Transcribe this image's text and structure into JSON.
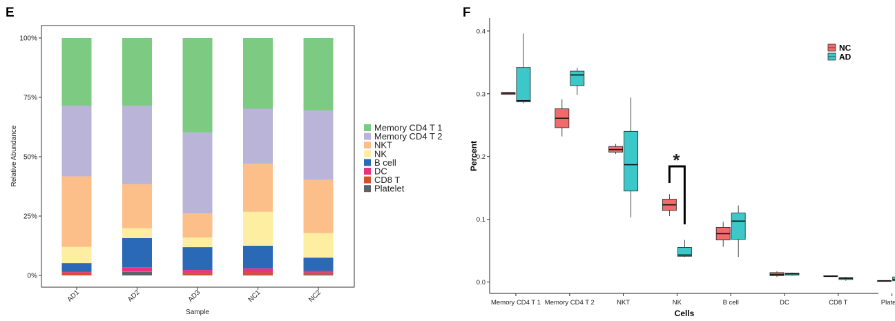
{
  "panel_e_label": "E",
  "panel_f_label": "F",
  "chart_data": [
    {
      "type": "bar",
      "stacked": true,
      "title": "",
      "xlabel": "Sample",
      "ylabel": "Relative Abundance",
      "categories": [
        "AD1",
        "AD2",
        "AD3",
        "NC1",
        "NC2"
      ],
      "ylim": [
        0,
        1
      ],
      "yticks": [
        "0%",
        "25%",
        "50%",
        "75%",
        "100%"
      ],
      "series": [
        {
          "name": "Platelet",
          "color": "#5a6468",
          "values": [
            0.002,
            0.015,
            0.002,
            0.003,
            0.004
          ]
        },
        {
          "name": "CD8 T",
          "color": "#d2522b",
          "values": [
            0.01,
            0.002,
            0.009,
            0.01,
            0.008
          ]
        },
        {
          "name": "DC",
          "color": "#e8347e",
          "values": [
            0.004,
            0.017,
            0.012,
            0.017,
            0.007
          ]
        },
        {
          "name": "B cell",
          "color": "#2a69b6",
          "values": [
            0.036,
            0.123,
            0.096,
            0.095,
            0.056
          ]
        },
        {
          "name": "NK",
          "color": "#fdeea1",
          "values": [
            0.068,
            0.042,
            0.041,
            0.143,
            0.103
          ]
        },
        {
          "name": "NKT",
          "color": "#fdbf89",
          "values": [
            0.297,
            0.185,
            0.101,
            0.202,
            0.225
          ]
        },
        {
          "name": "Memory CD4 T 2",
          "color": "#bab4d9",
          "values": [
            0.298,
            0.331,
            0.341,
            0.232,
            0.292
          ]
        },
        {
          "name": "Memory CD4 T 1",
          "color": "#7dcb82",
          "values": [
            0.285,
            0.285,
            0.398,
            0.298,
            0.305
          ]
        }
      ],
      "legend_order": [
        "Memory CD4 T 1",
        "Memory CD4 T 2",
        "NKT",
        "NK",
        "B cell",
        "DC",
        "CD8 T",
        "Platelet"
      ],
      "legend_position": "right"
    },
    {
      "type": "boxplot",
      "title": "",
      "xlabel": "Cells",
      "ylabel": "Percent",
      "categories": [
        "Memory CD4 T 1",
        "Memory CD4 T 2",
        "NKT",
        "NK",
        "B cell",
        "DC",
        "CD8 T",
        "Platelet"
      ],
      "ylim": [
        -0.02,
        0.42
      ],
      "yticks": [
        "0.0",
        "0.1",
        "0.2",
        "0.3",
        "0.4"
      ],
      "series": [
        {
          "name": "NC",
          "color": "#f16b6b",
          "boxes": [
            {
              "min": 0.299,
              "q1": 0.299,
              "median": 0.301,
              "q3": 0.302,
              "max": 0.303
            },
            {
              "min": 0.232,
              "q1": 0.246,
              "median": 0.261,
              "q3": 0.276,
              "max": 0.291
            },
            {
              "min": 0.204,
              "q1": 0.207,
              "median": 0.211,
              "q3": 0.216,
              "max": 0.22
            },
            {
              "min": 0.105,
              "q1": 0.114,
              "median": 0.123,
              "q3": 0.132,
              "max": 0.14
            },
            {
              "min": 0.056,
              "q1": 0.067,
              "median": 0.077,
              "q3": 0.087,
              "max": 0.096
            },
            {
              "min": 0.008,
              "q1": 0.01,
              "median": 0.012,
              "q3": 0.015,
              "max": 0.017
            },
            {
              "min": 0.009,
              "q1": 0.009,
              "median": 0.009,
              "q3": 0.01,
              "max": 0.01
            },
            {
              "min": 0.001,
              "q1": 0.001,
              "median": 0.002,
              "q3": 0.002,
              "max": 0.002
            }
          ]
        },
        {
          "name": "AD",
          "color": "#3cc8c8",
          "boxes": [
            {
              "min": 0.285,
              "q1": 0.287,
              "median": 0.289,
              "q3": 0.342,
              "max": 0.396
            },
            {
              "min": 0.298,
              "q1": 0.313,
              "median": 0.33,
              "q3": 0.336,
              "max": 0.341
            },
            {
              "min": 0.103,
              "q1": 0.145,
              "median": 0.187,
              "q3": 0.24,
              "max": 0.294
            },
            {
              "min": 0.04,
              "q1": 0.041,
              "median": 0.043,
              "q3": 0.055,
              "max": 0.067
            },
            {
              "min": 0.04,
              "q1": 0.068,
              "median": 0.097,
              "q3": 0.11,
              "max": 0.122
            },
            {
              "min": 0.01,
              "q1": 0.011,
              "median": 0.013,
              "q3": 0.014,
              "max": 0.015
            },
            {
              "min": 0.002,
              "q1": 0.004,
              "median": 0.006,
              "q3": 0.007,
              "max": 0.008
            },
            {
              "min": 0.002,
              "q1": 0.002,
              "median": 0.004,
              "q3": 0.008,
              "max": 0.013
            }
          ]
        }
      ],
      "legend_position": "top-right",
      "annotation": {
        "text": "*",
        "category": "NK"
      }
    }
  ]
}
